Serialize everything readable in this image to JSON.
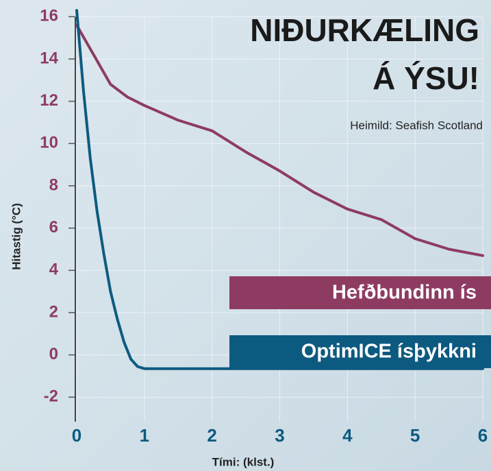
{
  "chart_data": {
    "type": "line",
    "title_lines": [
      "NIÐURKÆLING",
      "Á ÝSU!"
    ],
    "subtitle": "Heimild: Seafish Scotland",
    "x_label": "Tími: (klst.)",
    "y_label": "Hitastig (°C)",
    "xlim": [
      0,
      6
    ],
    "xticks": [
      0,
      1,
      2,
      3,
      4,
      5,
      6
    ],
    "ylim": [
      -2.8,
      16.4
    ],
    "yticks": [
      -2,
      0,
      2,
      4,
      6,
      8,
      10,
      12,
      14,
      16
    ],
    "grid": true,
    "series": [
      {
        "name": "Hefðbundinn ís",
        "color": "#8e3b62",
        "x": [
          0,
          0.25,
          0.5,
          0.75,
          1,
          1.5,
          2,
          2.5,
          3,
          3.5,
          4,
          4.5,
          5,
          5.5,
          6
        ],
        "values": [
          15.6,
          14.2,
          12.8,
          12.2,
          11.8,
          11.1,
          10.6,
          9.6,
          8.7,
          7.7,
          6.9,
          6.4,
          5.5,
          5.0,
          4.7
        ]
      },
      {
        "name": "OptimICE ísþykkni",
        "color": "#0d5a80",
        "x": [
          0,
          0.1,
          0.2,
          0.3,
          0.4,
          0.5,
          0.6,
          0.7,
          0.8,
          0.9,
          1,
          2,
          3,
          4,
          5,
          6
        ],
        "values": [
          16.3,
          12.5,
          9.3,
          6.8,
          4.8,
          3.0,
          1.7,
          0.6,
          -0.2,
          -0.55,
          -0.65,
          -0.65,
          -0.65,
          -0.65,
          -0.65,
          -0.65
        ]
      }
    ]
  }
}
